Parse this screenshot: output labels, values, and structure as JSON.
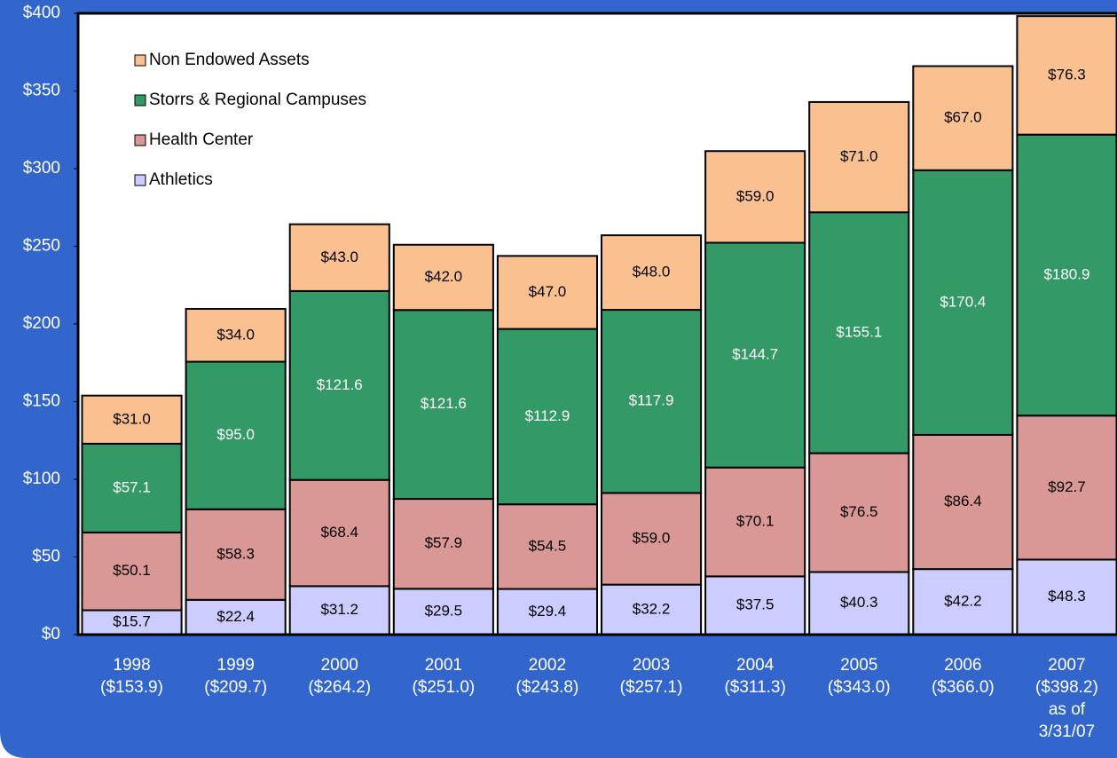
{
  "chart_data": {
    "type": "stacked_bar",
    "categories": [
      [
        "1998",
        "($153.9)"
      ],
      [
        "1999",
        "($209.7)"
      ],
      [
        "2000",
        "($264.2)"
      ],
      [
        "2001",
        "($251.0)"
      ],
      [
        "2002",
        "($243.8)"
      ],
      [
        "2003",
        "($257.1)"
      ],
      [
        "2004",
        "($311.3)"
      ],
      [
        "2005",
        "($343.0)"
      ],
      [
        "2006",
        "($366.0)"
      ],
      [
        "2007",
        "($398.2)",
        "as of",
        "3/31/07"
      ]
    ],
    "series": [
      {
        "name": "Athletics",
        "color": "#ccccff",
        "label_color": "#000000",
        "values": [
          15.7,
          22.4,
          31.2,
          29.5,
          29.4,
          32.2,
          37.5,
          40.3,
          42.2,
          48.3
        ],
        "value_labels": [
          "$15.7",
          "$22.4",
          "$31.2",
          "$29.5",
          "$29.4",
          "$32.2",
          "$37.5",
          "$40.3",
          "$42.2",
          "$48.3"
        ]
      },
      {
        "name": "Health Center",
        "color": "#d99795",
        "label_color": "#000000",
        "values": [
          50.1,
          58.3,
          68.4,
          57.9,
          54.5,
          59.0,
          70.1,
          76.5,
          86.4,
          92.7
        ],
        "value_labels": [
          "$50.1",
          "$58.3",
          "$68.4",
          "$57.9",
          "$54.5",
          "$59.0",
          "$70.1",
          "$76.5",
          "$86.4",
          "$92.7"
        ]
      },
      {
        "name": "Storrs & Regional Campuses",
        "color": "#339966",
        "label_color": "#ffffff",
        "values": [
          57.1,
          95.0,
          121.6,
          121.6,
          112.9,
          117.9,
          144.7,
          155.1,
          170.4,
          180.9
        ],
        "value_labels": [
          "$57.1",
          "$95.0",
          "$121.6",
          "$121.6",
          "$112.9",
          "$117.9",
          "$144.7",
          "$155.1",
          "$170.4",
          "$180.9"
        ]
      },
      {
        "name": "Non Endowed Assets",
        "color": "#fac090",
        "label_color": "#000000",
        "values": [
          31.0,
          34.0,
          43.0,
          42.0,
          47.0,
          48.0,
          59.0,
          71.0,
          67.0,
          76.3
        ],
        "value_labels": [
          "$31.0",
          "$34.0",
          "$43.0",
          "$42.0",
          "$47.0",
          "$48.0",
          "$59.0",
          "$71.0",
          "$67.0",
          "$76.3"
        ]
      }
    ],
    "ylim": [
      0,
      400
    ],
    "yticks": [
      {
        "value": 0,
        "label": "$0"
      },
      {
        "value": 50,
        "label": "$50"
      },
      {
        "value": 100,
        "label": "$100"
      },
      {
        "value": 150,
        "label": "$150"
      },
      {
        "value": 200,
        "label": "$200"
      },
      {
        "value": 250,
        "label": "$250"
      },
      {
        "value": 300,
        "label": "$300"
      },
      {
        "value": 350,
        "label": "$350"
      },
      {
        "value": 400,
        "label": "$400"
      }
    ],
    "legend": "upper left"
  }
}
